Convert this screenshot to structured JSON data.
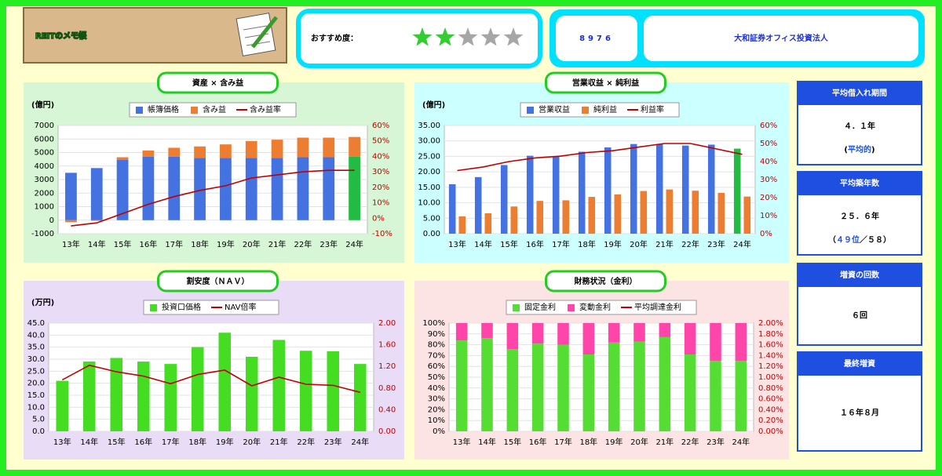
{
  "header": {
    "logo": "REITのメモ帳",
    "rating_label": "おすすめ度：",
    "rating": 2,
    "rating_max": 5,
    "rating_color": "#33cc33",
    "rating_off_color": "#a6a6a6",
    "code": "8976",
    "name": "大和証券オフィス投資法人"
  },
  "stats": [
    {
      "title": "平均借入れ期間",
      "value": "４．１年",
      "note": [
        "(",
        "平均的",
        ")"
      ]
    },
    {
      "title": "平均築年数",
      "value": "２５．６年",
      "note": [
        "（",
        "４９位",
        "／５８）"
      ]
    },
    {
      "title": "増資の回数",
      "value": "６回"
    },
    {
      "title": "最終増資",
      "value": "１６年８月"
    }
  ],
  "chart_data": [
    {
      "type": "bar",
      "title": "資産 × 含み益",
      "y_unit": "(億円)",
      "stacked": true,
      "categories": [
        "13年",
        "14年",
        "15年",
        "16年",
        "17年",
        "18年",
        "19年",
        "20年",
        "21年",
        "22年",
        "23年",
        "24年"
      ],
      "series": [
        {
          "name": "帳簿価格",
          "type": "bar",
          "color": "#4472e0",
          "colors": [
            "#4472e0",
            "#4472e0",
            "#4472e0",
            "#4472e0",
            "#4472e0",
            "#4472e0",
            "#4472e0",
            "#4472e0",
            "#4472e0",
            "#4472e0",
            "#4472e0",
            "#22bb44"
          ],
          "values": [
            3500,
            3850,
            4450,
            4700,
            4700,
            4600,
            4600,
            4600,
            4600,
            4650,
            4650,
            4700
          ]
        },
        {
          "name": "含み益",
          "type": "bar",
          "color": "#ed7d31",
          "values": [
            -150,
            -50,
            200,
            450,
            650,
            850,
            1000,
            1250,
            1350,
            1450,
            1450,
            1450
          ]
        },
        {
          "name": "含み益率",
          "type": "line",
          "color": "#c00000",
          "axis": "y2",
          "values": [
            -5,
            -3,
            3,
            9,
            14,
            18,
            21,
            26,
            28,
            30,
            31,
            31
          ]
        }
      ],
      "ylim": [
        -1000,
        7000
      ],
      "yticks": [
        -1000,
        0,
        1000,
        2000,
        3000,
        4000,
        5000,
        6000,
        7000
      ],
      "y2lim": [
        -10,
        60
      ],
      "y2ticks": [
        {
          "value": -10,
          "label": "-10%"
        },
        {
          "value": 0,
          "label": "0%"
        },
        {
          "value": 10,
          "label": "10%"
        },
        {
          "value": 20,
          "label": "20%"
        },
        {
          "value": 30,
          "label": "30%"
        },
        {
          "value": 40,
          "label": "40%"
        },
        {
          "value": 50,
          "label": "50%"
        },
        {
          "value": 60,
          "label": "60%"
        }
      ]
    },
    {
      "type": "bar",
      "title": "営業収益 × 純利益",
      "y_unit": "(億円)",
      "stacked": false,
      "categories": [
        "13年",
        "14年",
        "15年",
        "16年",
        "17年",
        "18年",
        "19年",
        "20年",
        "21年",
        "22年",
        "23年",
        "24年"
      ],
      "series": [
        {
          "name": "営業収益",
          "type": "bar",
          "color": "#4472e0",
          "colors": [
            "#4472e0",
            "#4472e0",
            "#4472e0",
            "#4472e0",
            "#4472e0",
            "#4472e0",
            "#4472e0",
            "#4472e0",
            "#4472e0",
            "#4472e0",
            "#4472e0",
            "#22bb44"
          ],
          "values": [
            16.0,
            18.3,
            22.2,
            25.2,
            25.0,
            26.5,
            27.9,
            29.0,
            29.0,
            28.5,
            28.8,
            27.5
          ]
        },
        {
          "name": "純利益",
          "type": "bar",
          "color": "#ed7d31",
          "values": [
            5.6,
            6.6,
            8.8,
            10.6,
            10.8,
            11.9,
            12.7,
            13.8,
            14.3,
            13.9,
            13.2,
            12.0
          ]
        },
        {
          "name": "利益率",
          "type": "line",
          "color": "#c00000",
          "axis": "y2",
          "values": [
            35,
            37,
            40,
            42,
            43,
            45,
            46,
            48,
            50,
            50,
            47,
            44
          ]
        }
      ],
      "ylim": [
        0,
        35
      ],
      "yticks": [
        {
          "value": 0,
          "label": "0.00"
        },
        {
          "value": 5,
          "label": "5.00"
        },
        {
          "value": 10,
          "label": "10.00"
        },
        {
          "value": 15,
          "label": "15.00"
        },
        {
          "value": 20,
          "label": "20.00"
        },
        {
          "value": 25,
          "label": "25.00"
        },
        {
          "value": 30,
          "label": "30.00"
        },
        {
          "value": 35,
          "label": "35.00"
        }
      ],
      "y2lim": [
        0,
        60
      ],
      "y2ticks": [
        {
          "value": 0,
          "label": "0%"
        },
        {
          "value": 10,
          "label": "10%"
        },
        {
          "value": 20,
          "label": "20%"
        },
        {
          "value": 30,
          "label": "30%"
        },
        {
          "value": 40,
          "label": "40%"
        },
        {
          "value": 50,
          "label": "50%"
        },
        {
          "value": 60,
          "label": "60%"
        }
      ]
    },
    {
      "type": "bar",
      "title": "割安度（ＮＡＶ）",
      "y_unit": "(万円)",
      "stacked": false,
      "categories": [
        "13年",
        "14年",
        "15年",
        "16年",
        "17年",
        "18年",
        "19年",
        "20年",
        "21年",
        "22年",
        "23年",
        "24年"
      ],
      "series": [
        {
          "name": "投資口価格",
          "type": "bar",
          "color": "#44dd22",
          "values": [
            21,
            29,
            30.5,
            29,
            28,
            35,
            41,
            31,
            38,
            33.5,
            33.3,
            28
          ]
        },
        {
          "name": "NAV倍率",
          "type": "line",
          "color": "#c00000",
          "axis": "y2",
          "values": [
            0.95,
            1.22,
            1.1,
            1.02,
            0.88,
            1.05,
            1.13,
            0.84,
            1.0,
            0.87,
            0.85,
            0.72
          ]
        }
      ],
      "ylim": [
        0,
        45
      ],
      "yticks": [
        {
          "value": 0,
          "label": "0.0"
        },
        {
          "value": 5,
          "label": "5.0"
        },
        {
          "value": 10,
          "label": "10.0"
        },
        {
          "value": 15,
          "label": "15.0"
        },
        {
          "value": 20,
          "label": "20.0"
        },
        {
          "value": 25,
          "label": "25.0"
        },
        {
          "value": 30,
          "label": "30.0"
        },
        {
          "value": 35,
          "label": "35.0"
        },
        {
          "value": 40,
          "label": "40.0"
        },
        {
          "value": 45,
          "label": "45.0"
        }
      ],
      "y2lim": [
        0,
        2
      ],
      "y2ticks": [
        {
          "value": 0,
          "label": "0.00"
        },
        {
          "value": 0.4,
          "label": "0.40"
        },
        {
          "value": 0.8,
          "label": "0.80"
        },
        {
          "value": 1.2,
          "label": "1.20"
        },
        {
          "value": 1.6,
          "label": "1.60"
        },
        {
          "value": 2,
          "label": "2.00"
        }
      ]
    },
    {
      "type": "bar",
      "title": "財務状況（金利）",
      "stacked": true,
      "categories": [
        "13年",
        "14年",
        "15年",
        "16年",
        "17年",
        "18年",
        "19年",
        "20年",
        "21年",
        "22年",
        "23年",
        "24年"
      ],
      "series": [
        {
          "name": "固定金利",
          "type": "bar",
          "color": "#55dd33",
          "values": [
            84,
            86,
            76,
            81,
            80,
            71,
            82,
            83,
            87,
            71,
            65,
            65
          ]
        },
        {
          "name": "変動金利",
          "type": "bar",
          "color": "#ff44aa",
          "values": [
            16,
            14,
            24,
            19,
            20,
            29,
            18,
            17,
            13,
            29,
            35,
            35
          ]
        },
        {
          "name": "平均調達金利",
          "type": "line",
          "color": "#c00000",
          "axis": "y2"
        }
      ],
      "ylim": [
        0,
        100
      ],
      "yticks": [
        {
          "value": 0,
          "label": "0%"
        },
        {
          "value": 10,
          "label": "10%"
        },
        {
          "value": 20,
          "label": "20%"
        },
        {
          "value": 30,
          "label": "30%"
        },
        {
          "value": 40,
          "label": "40%"
        },
        {
          "value": 50,
          "label": "50%"
        },
        {
          "value": 60,
          "label": "60%"
        },
        {
          "value": 70,
          "label": "70%"
        },
        {
          "value": 80,
          "label": "80%"
        },
        {
          "value": 90,
          "label": "90%"
        },
        {
          "value": 100,
          "label": "100%"
        }
      ],
      "y2lim": [
        0,
        2
      ],
      "y2ticks": [
        {
          "value": 0,
          "label": "0.00%"
        },
        {
          "value": 0.2,
          "label": "0.20%"
        },
        {
          "value": 0.4,
          "label": "0.40%"
        },
        {
          "value": 0.6,
          "label": "0.60%"
        },
        {
          "value": 0.8,
          "label": "0.80%"
        },
        {
          "value": 1,
          "label": "1.00%"
        },
        {
          "value": 1.2,
          "label": "1.20%"
        },
        {
          "value": 1.4,
          "label": "1.40%"
        },
        {
          "value": 1.6,
          "label": "1.60%"
        },
        {
          "value": 1.8,
          "label": "1.80%"
        },
        {
          "value": 2,
          "label": "2.00%"
        }
      ]
    }
  ]
}
